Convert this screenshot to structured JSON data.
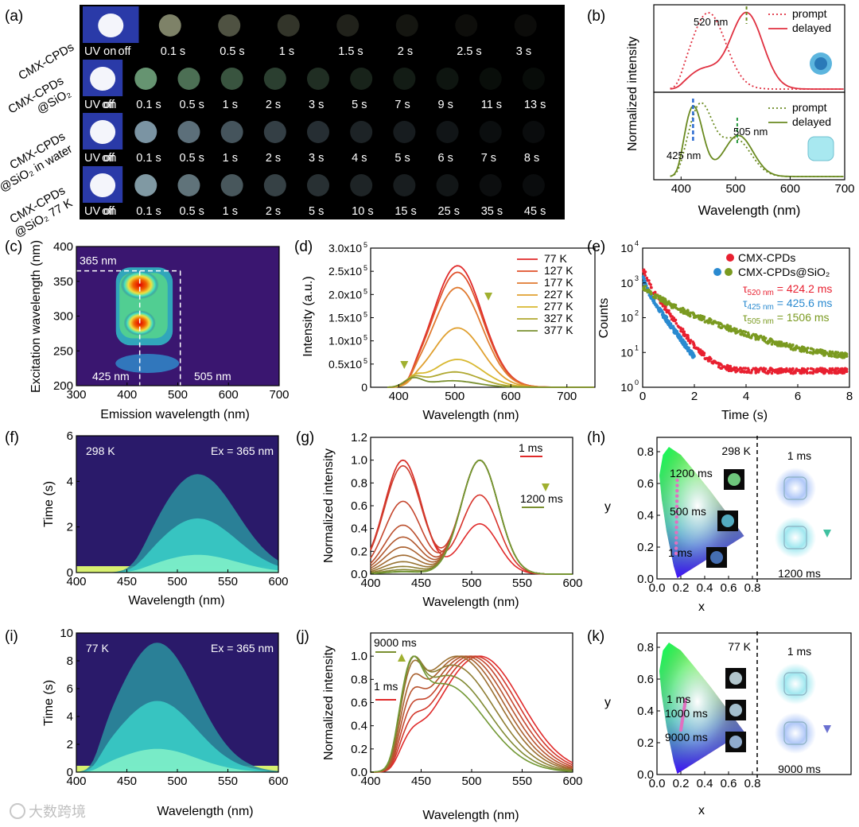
{
  "panel_labels": [
    "(a)",
    "(b)",
    "(c)",
    "(d)",
    "(e)",
    "(f)",
    "(g)",
    "(h)",
    "(i)",
    "(j)",
    "(k)"
  ],
  "watermark": "大数跨境",
  "panel_a": {
    "rows": [
      {
        "label": [
          "CMX-CPDs"
        ],
        "times": [
          "UV on",
          "off",
          "0.1 s",
          "0.5 s",
          "1 s",
          "1.5 s",
          "2 s",
          "2.5 s",
          "3 s"
        ],
        "color": "#e8f0c0"
      },
      {
        "label": [
          "CMX-CPDs",
          "@SiO₂"
        ],
        "times": [
          "UV on",
          "off",
          "0.1 s",
          "0.5 s",
          "1 s",
          "2 s",
          "3 s",
          "5 s",
          "7 s",
          "9 s",
          "11 s",
          "13 s"
        ],
        "color": "#9fe8b0"
      },
      {
        "label": [
          "CMX-CPDs",
          "@SiO₂ in water"
        ],
        "times": [
          "UV on",
          "off",
          "0.1 s",
          "0.5 s",
          "1 s",
          "2 s",
          "3 s",
          "4 s",
          "5 s",
          "6 s",
          "7 s",
          "8 s"
        ],
        "color": "#c0e8ff"
      },
      {
        "label": [
          "CMX-CPDs",
          "@SiO₂ 77 K"
        ],
        "times": [
          "UV on",
          "off",
          "0.1 s",
          "0.5 s",
          "1 s",
          "2 s",
          "5 s",
          "10 s",
          "15 s",
          "25 s",
          "35 s",
          "45 s"
        ],
        "color": "#c8f0ff"
      }
    ]
  },
  "panel_b": {
    "ylabel": "Normalized intensity",
    "xlabel": "Wavelength (nm)",
    "xticks": [
      "400",
      "500",
      "600",
      "700"
    ],
    "top": {
      "annotation": "520 nm",
      "legend": [
        "prompt",
        "delayed"
      ],
      "color": "#e03040"
    },
    "bottom": {
      "annotations": [
        "425 nm",
        "505 nm"
      ],
      "legend": [
        "prompt",
        "delayed"
      ],
      "color": "#6a8a20"
    }
  },
  "panel_c": {
    "xlabel": "Emission wavelength (nm)",
    "ylabel": "Excitation wavelength (nm)",
    "xticks": [
      "300",
      "400",
      "500",
      "600",
      "700"
    ],
    "yticks": [
      "200",
      "250",
      "300",
      "350",
      "400"
    ],
    "annotations": [
      "365 nm",
      "425 nm",
      "505 nm"
    ]
  },
  "panel_d": {
    "xlabel": "Wavelength (nm)",
    "ylabel": "Intensity (a.u.)",
    "xticks": [
      "400",
      "500",
      "600",
      "700"
    ],
    "ytick_mantissa": [
      "0",
      "0.5x10",
      "1.0x10",
      "1.5x10",
      "2.0x10",
      "2.5x10",
      "3.0x10"
    ],
    "ytick_exp": "5",
    "legend": [
      "77 K",
      "127 K",
      "177 K",
      "227 K",
      "277 K",
      "327 K",
      "377 K"
    ],
    "colors": [
      "#e02a2a",
      "#e0502a",
      "#e07a30",
      "#e0a030",
      "#d8b830",
      "#b0a830",
      "#7a9030"
    ]
  },
  "panel_e": {
    "xlabel": "Time (s)",
    "ylabel": "Counts",
    "xticks": [
      "0",
      "2",
      "4",
      "6",
      "8"
    ],
    "yticks_exp": [
      "0",
      "1",
      "2",
      "3",
      "4"
    ],
    "legend": [
      "CMX-CPDs",
      "CMX-CPDs@SiO₂"
    ],
    "taus": [
      {
        "sym": "τ",
        "sub": "520 nm",
        "val": "= 424.2 ms",
        "color": "#e82030"
      },
      {
        "sym": "τ",
        "sub": "425 nm",
        "val": "= 425.6 ms",
        "color": "#2a8ad0"
      },
      {
        "sym": "τ",
        "sub": "505 nm",
        "val": "= 1506 ms",
        "color": "#7a9a20"
      }
    ]
  },
  "panel_f": {
    "xlabel": "Wavelength (nm)",
    "ylabel": "Time (s)",
    "xticks": [
      "400",
      "450",
      "500",
      "550",
      "600"
    ],
    "yticks": [
      "0",
      "2",
      "4",
      "6"
    ],
    "temp": "298 K",
    "ex": "Ex = 365 nm"
  },
  "panel_g": {
    "xlabel": "Wavelength (nm)",
    "ylabel": "Normalized intensity",
    "xticks": [
      "400",
      "450",
      "500",
      "550",
      "600"
    ],
    "yticks": [
      "0.0",
      "0.2",
      "0.4",
      "0.6",
      "0.8",
      "1.0",
      "1.2"
    ],
    "legend": [
      "1 ms",
      "1200 ms"
    ]
  },
  "panel_h": {
    "xlabel": "x",
    "ylabel": "y",
    "xticks": [
      "0.0",
      "0.2",
      "0.4",
      "0.6",
      "0.8"
    ],
    "yticks": [
      "0.0",
      "0.2",
      "0.4",
      "0.6",
      "0.8"
    ],
    "temp": "298 K",
    "labels": [
      "1200 ms",
      "500 ms",
      "1 ms"
    ],
    "side": [
      "1 ms",
      "1200 ms"
    ]
  },
  "panel_i": {
    "xlabel": "Wavelength (nm)",
    "ylabel": "Time (s)",
    "xticks": [
      "400",
      "450",
      "500",
      "550",
      "600"
    ],
    "yticks": [
      "0",
      "2",
      "4",
      "6",
      "8",
      "10"
    ],
    "temp": "77 K",
    "ex": "Ex = 365 nm"
  },
  "panel_j": {
    "xlabel": "Wavelength (nm)",
    "ylabel": "Normalized intensity",
    "xticks": [
      "400",
      "450",
      "500",
      "550",
      "600"
    ],
    "yticks": [
      "0.0",
      "0.2",
      "0.4",
      "0.6",
      "0.8",
      "1.0"
    ],
    "legend": [
      "9000 ms",
      "1 ms"
    ]
  },
  "panel_k": {
    "xlabel": "x",
    "ylabel": "y",
    "xticks": [
      "0.0",
      "0.2",
      "0.4",
      "0.6",
      "0.8"
    ],
    "yticks": [
      "0.0",
      "0.2",
      "0.4",
      "0.6",
      "0.8"
    ],
    "temp": "77 K",
    "labels": [
      "1 ms",
      "1000 ms",
      "9000 ms"
    ],
    "side": [
      "1 ms",
      "9000 ms"
    ]
  },
  "chart_data": [
    {
      "panel": "b-top",
      "type": "line",
      "xlabel": "Wavelength (nm)",
      "ylabel": "Normalized intensity",
      "xlim": [
        380,
        700
      ],
      "series": [
        {
          "name": "prompt",
          "style": "dotted",
          "peaks": [
            {
              "center": 450,
              "width": 45,
              "amp": 1.0
            }
          ]
        },
        {
          "name": "delayed",
          "style": "solid",
          "peaks": [
            {
              "center": 520,
              "width": 42,
              "amp": 1.0
            },
            {
              "center": 440,
              "width": 40,
              "amp": 0.25
            }
          ]
        }
      ]
    },
    {
      "panel": "b-bottom",
      "type": "line",
      "xlabel": "Wavelength (nm)",
      "ylabel": "Normalized intensity",
      "xlim": [
        380,
        700
      ],
      "series": [
        {
          "name": "prompt",
          "style": "dotted",
          "peaks": [
            {
              "center": 435,
              "width": 32,
              "amp": 0.95
            },
            {
              "center": 500,
              "width": 40,
              "amp": 0.5
            }
          ]
        },
        {
          "name": "delayed",
          "style": "solid",
          "peaks": [
            {
              "center": 422,
              "width": 25,
              "amp": 0.95
            },
            {
              "center": 505,
              "width": 38,
              "amp": 0.55
            }
          ]
        }
      ]
    },
    {
      "panel": "d",
      "type": "line",
      "xlabel": "Wavelength (nm)",
      "ylabel": "Intensity (a.u.)",
      "xlim": [
        350,
        750
      ],
      "ylim": [
        0,
        300000
      ],
      "series": [
        {
          "name": "77 K",
          "peak": 505,
          "amp": 262000
        },
        {
          "name": "127 K",
          "peak": 505,
          "amp": 248000
        },
        {
          "name": "177 K",
          "peak": 505,
          "amp": 215000
        },
        {
          "name": "227 K",
          "peak": 505,
          "amp": 128000
        },
        {
          "name": "277 K",
          "peak": 505,
          "amp": 60000
        },
        {
          "name": "327 K",
          "peak": 500,
          "amp": 33000
        },
        {
          "name": "377 K",
          "peak": 495,
          "amp": 14000
        }
      ]
    },
    {
      "panel": "e",
      "type": "scatter",
      "xlabel": "Time (s)",
      "ylabel": "Counts",
      "xlim": [
        0,
        8
      ],
      "ylog": true,
      "ylim": [
        1,
        10000
      ],
      "series": [
        {
          "name": "CMX-CPDs",
          "lifetime_s": 0.4242
        },
        {
          "name": "CMX-CPDs@SiO₂ 425 nm",
          "lifetime_s": 0.4256
        },
        {
          "name": "CMX-CPDs@SiO₂ 505 nm",
          "lifetime_s": 1.506
        }
      ]
    },
    {
      "panel": "g",
      "type": "line",
      "xlabel": "Wavelength (nm)",
      "ylabel": "Normalized intensity",
      "xlim": [
        400,
        600
      ],
      "ylim": [
        0,
        1.2
      ],
      "series_count": 13,
      "first": "1 ms",
      "last": "1200 ms"
    },
    {
      "panel": "j",
      "type": "line",
      "xlabel": "Wavelength (nm)",
      "ylabel": "Normalized intensity",
      "xlim": [
        400,
        600
      ],
      "ylim": [
        0,
        1.2
      ],
      "series_count": 9,
      "first": "1 ms",
      "last": "9000 ms"
    }
  ]
}
